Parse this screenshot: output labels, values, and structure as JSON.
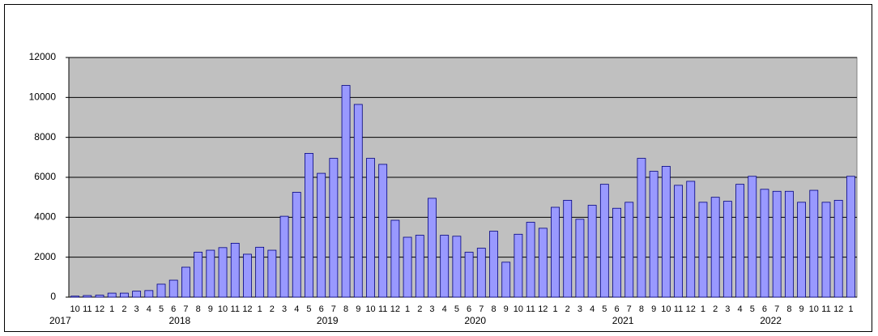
{
  "chart_data": {
    "type": "bar",
    "categories": [
      "10",
      "11",
      "12",
      "1",
      "2",
      "3",
      "4",
      "5",
      "6",
      "7",
      "8",
      "9",
      "10",
      "11",
      "12",
      "1",
      "2",
      "3",
      "4",
      "5",
      "6",
      "7",
      "8",
      "9",
      "10",
      "11",
      "12",
      "1",
      "2",
      "3",
      "4",
      "5",
      "6",
      "7",
      "8",
      "9",
      "10",
      "11",
      "12",
      "1",
      "2",
      "3",
      "4",
      "5",
      "6",
      "7",
      "8",
      "9",
      "10",
      "11",
      "12",
      "1",
      "2",
      "3",
      "4",
      "5",
      "6",
      "7",
      "8",
      "9",
      "10",
      "11",
      "12",
      "1"
    ],
    "x_groups": [
      "2017",
      "2018",
      "2019",
      "2020",
      "2021",
      "2022"
    ],
    "values": [
      50,
      80,
      100,
      200,
      200,
      300,
      330,
      650,
      850,
      1500,
      2250,
      2350,
      2480,
      2700,
      2150,
      2500,
      2350,
      4050,
      5250,
      7200,
      6200,
      6950,
      10600,
      9650,
      6950,
      6650,
      3850,
      3000,
      3100,
      4950,
      3100,
      3050,
      2250,
      2450,
      3300,
      1750,
      3150,
      3750,
      3450,
      4500,
      4850,
      3900,
      4600,
      5650,
      4450,
      4750,
      6950,
      6300,
      6550,
      5600,
      5800,
      4750,
      5000,
      4800,
      5650,
      6050,
      5400,
      5300,
      5300,
      4750,
      5350,
      4750,
      4850,
      6050
    ],
    "color": "#9999ff",
    "ylim": [
      0,
      12000
    ],
    "yticks": [
      0,
      2000,
      4000,
      6000,
      8000,
      10000,
      12000
    ],
    "grid": true
  }
}
